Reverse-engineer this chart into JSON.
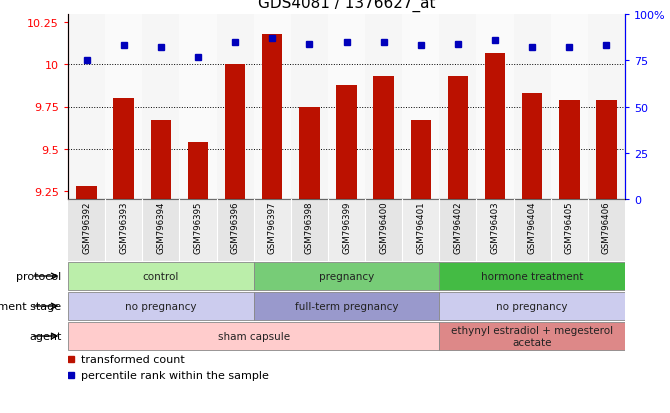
{
  "title": "GDS4081 / 1376627_at",
  "samples": [
    "GSM796392",
    "GSM796393",
    "GSM796394",
    "GSM796395",
    "GSM796396",
    "GSM796397",
    "GSM796398",
    "GSM796399",
    "GSM796400",
    "GSM796401",
    "GSM796402",
    "GSM796403",
    "GSM796404",
    "GSM796405",
    "GSM796406"
  ],
  "bar_values": [
    9.28,
    9.8,
    9.67,
    9.54,
    10.0,
    10.18,
    9.75,
    9.88,
    9.93,
    9.67,
    9.93,
    10.07,
    9.83,
    9.79,
    9.79
  ],
  "dot_values": [
    75,
    83,
    82,
    77,
    85,
    87,
    84,
    85,
    85,
    83,
    84,
    86,
    82,
    82,
    83
  ],
  "ylim_left": [
    9.2,
    10.3
  ],
  "ylim_right": [
    0,
    100
  ],
  "yticks_left": [
    9.25,
    9.5,
    9.75,
    10.0,
    10.25
  ],
  "yticks_right": [
    0,
    25,
    50,
    75,
    100
  ],
  "ytick_labels_left": [
    "9.25",
    "9.5",
    "9.75",
    "10",
    "10.25"
  ],
  "ytick_labels_right": [
    "0",
    "25",
    "50",
    "75",
    "100%"
  ],
  "hlines": [
    9.5,
    9.75,
    10.0
  ],
  "bar_color": "#BB1100",
  "dot_color": "#0000BB",
  "bar_width": 0.55,
  "legend_bar_label": "transformed count",
  "legend_dot_label": "percentile rank within the sample",
  "bg_color": "#FFFFFF",
  "annot_rows": [
    {
      "label": "protocol",
      "groups": [
        {
          "name": "control",
          "start": 0,
          "end": 4,
          "color": "#BBEEAA"
        },
        {
          "name": "pregnancy",
          "start": 5,
          "end": 9,
          "color": "#77CC77"
        },
        {
          "name": "hormone treatment",
          "start": 10,
          "end": 14,
          "color": "#44BB44"
        }
      ]
    },
    {
      "label": "development stage",
      "groups": [
        {
          "name": "no pregnancy",
          "start": 0,
          "end": 4,
          "color": "#CCCCEE"
        },
        {
          "name": "full-term pregnancy",
          "start": 5,
          "end": 9,
          "color": "#9999CC"
        },
        {
          "name": "no pregnancy",
          "start": 10,
          "end": 14,
          "color": "#CCCCEE"
        }
      ]
    },
    {
      "label": "agent",
      "groups": [
        {
          "name": "sham capsule",
          "start": 0,
          "end": 9,
          "color": "#FFCCCC"
        },
        {
          "name": "ethynyl estradiol + megesterol\nacetate",
          "start": 10,
          "end": 14,
          "color": "#DD8888"
        }
      ]
    }
  ]
}
